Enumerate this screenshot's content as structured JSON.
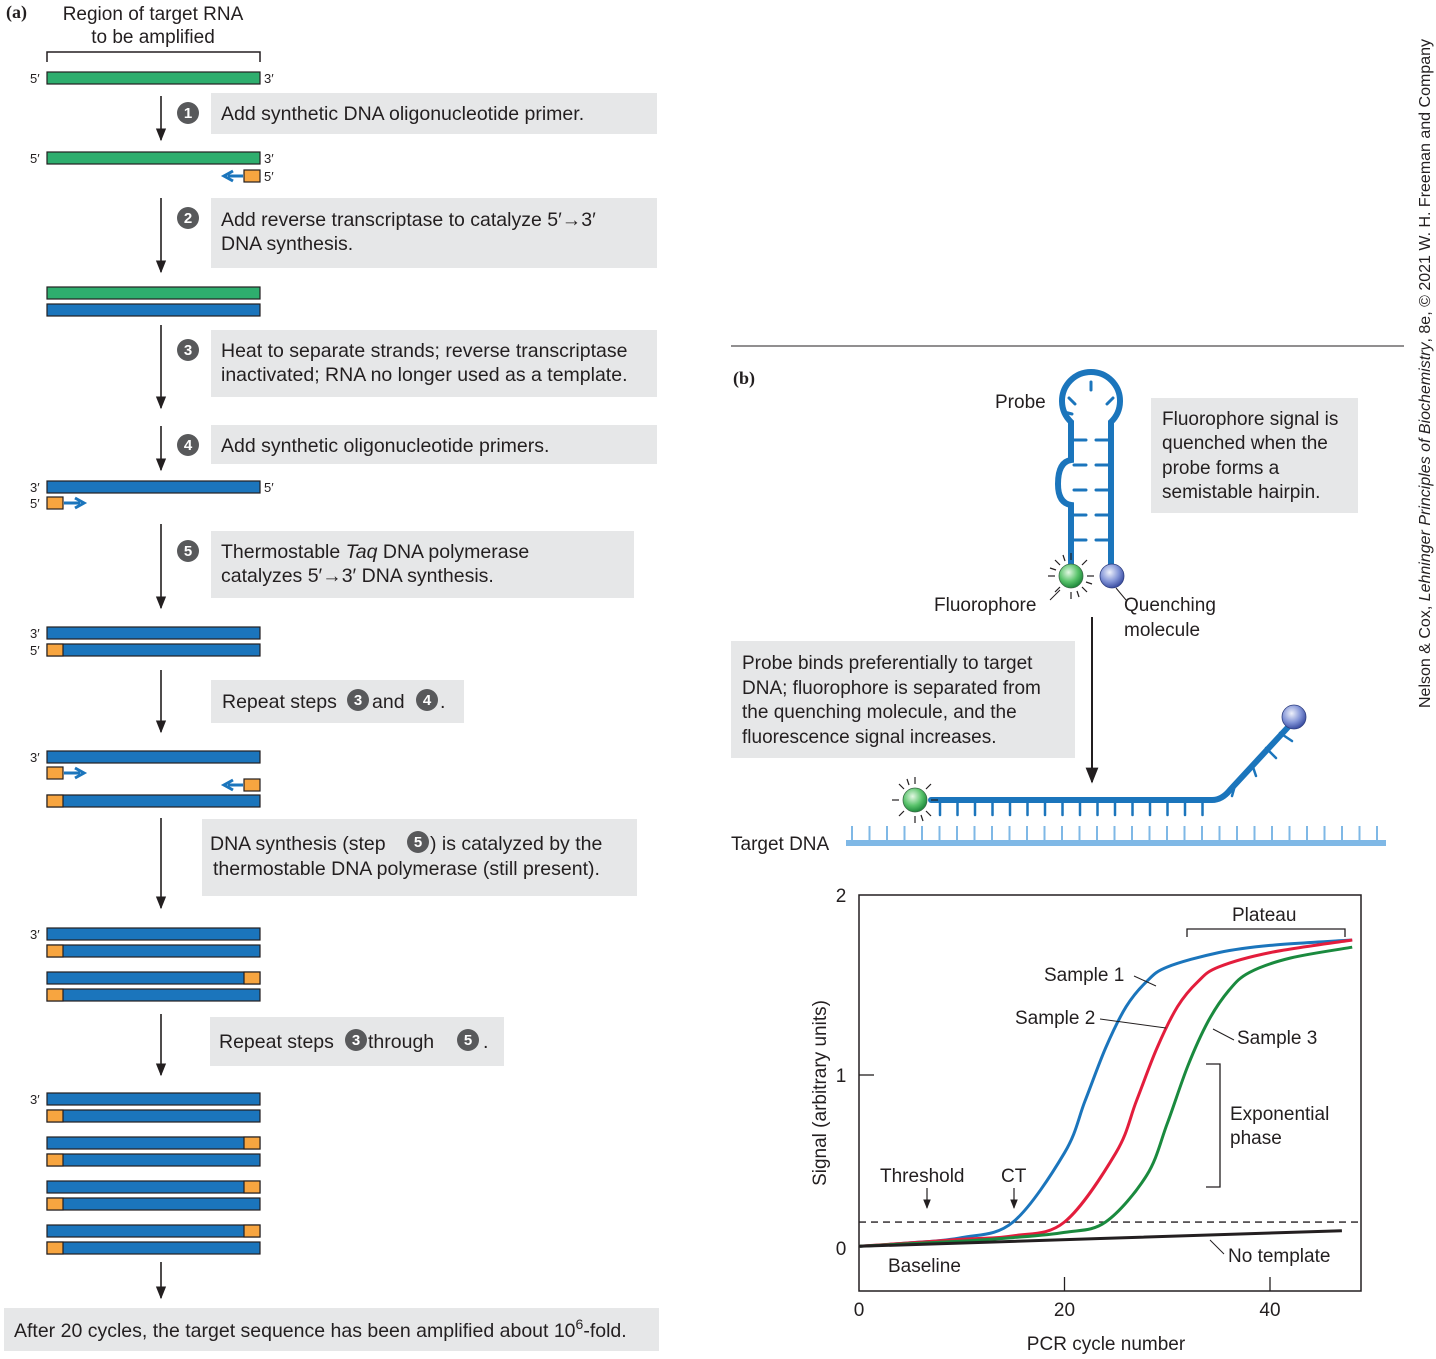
{
  "panel_a": {
    "label": "(a)",
    "region_title_line1": "Region of target RNA",
    "region_title_line2": "to be amplified",
    "end5": "5′",
    "end3": "3′",
    "steps": [
      {
        "num": "1",
        "line1": "Add synthetic DNA oligonucleotide primer.",
        "line2": ""
      },
      {
        "num": "2",
        "line1": "Add reverse transcriptase  to catalyze 5′→3′",
        "line2": "DNA synthesis."
      },
      {
        "num": "3",
        "line1": "Heat to separate strands; reverse transcriptase",
        "line2": "inactivated; RNA no longer used as a template."
      },
      {
        "num": "4",
        "line1": "Add synthetic oligonucleotide primers.",
        "line2": ""
      },
      {
        "num": "5",
        "line1_pre": "Thermostable ",
        "line1_italic": "Taq",
        "line1_post": " DNA polymerase",
        "line2": "catalyzes 5′→3′ DNA synthesis."
      }
    ],
    "repeat1": {
      "pre": "Repeat steps ",
      "n1": "3",
      "mid": "and ",
      "n2": "4",
      "post": "."
    },
    "synthesis_note": {
      "pre": "DNA synthesis (step ",
      "n": "5",
      "post": ") is catalyzed by the",
      "line2": "thermostable DNA polymerase (still present)."
    },
    "repeat2": {
      "pre": "Repeat steps ",
      "n1": "3",
      "mid": " through ",
      "n2": "5",
      "post": "."
    },
    "final": {
      "pre": "After 20 cycles, the target sequence has been amplified about 10",
      "sup": "6",
      "post": "-fold."
    }
  },
  "panel_b": {
    "label": "(b)",
    "probe": "Probe",
    "fluorophore": "Fluorophore",
    "quencher_line1": "Quenching",
    "quencher_line2": "molecule",
    "quenched_note": [
      "Fluorophore signal is",
      "quenched when the",
      "probe forms a",
      "semistable hairpin."
    ],
    "binds_note": [
      "Probe binds preferentially to target",
      "DNA; fluorophore is separated from",
      "the quenching molecule, and the",
      "fluorescence signal increases."
    ],
    "target_dna": "Target DNA"
  },
  "credit": {
    "pre": "Nelson & Cox, ",
    "italic": "Lehninger Principles of Biochemistry",
    "post": ", 8e, © 2021 W. H. Freeman and Company"
  },
  "colors": {
    "rna_green": "#2eae6e",
    "dna_blue": "#1b75bc",
    "primer_orange": "#f7a540",
    "light_blue": "#7fb8e6",
    "box_gray": "#e6e7e8",
    "sample1": "#1b75bc",
    "sample2": "#e31d3c",
    "sample3": "#1a8a3e"
  },
  "chart_data": {
    "type": "line",
    "xlabel": "PCR cycle number",
    "ylabel": "Signal (arbitrary units)",
    "xlim": [
      0,
      48
    ],
    "ylim": [
      0,
      2
    ],
    "xticks": [
      "0",
      "20",
      "40"
    ],
    "yticks": [
      "0",
      "1",
      "2"
    ],
    "threshold": 0.15,
    "series": [
      {
        "name": "Sample 1",
        "x": [
          0,
          5,
          10,
          15,
          20,
          22,
          24,
          26,
          28,
          30,
          35,
          40,
          48
        ],
        "y": [
          0.01,
          0.03,
          0.06,
          0.15,
          0.55,
          0.85,
          1.15,
          1.38,
          1.52,
          1.6,
          1.68,
          1.72,
          1.75
        ]
      },
      {
        "name": "Sample 2",
        "x": [
          0,
          10,
          15,
          20,
          25,
          27,
          29,
          31,
          33,
          35,
          40,
          48
        ],
        "y": [
          0.01,
          0.05,
          0.07,
          0.15,
          0.55,
          0.85,
          1.15,
          1.38,
          1.52,
          1.6,
          1.68,
          1.75
        ]
      },
      {
        "name": "Sample 3",
        "x": [
          0,
          10,
          15,
          20,
          24,
          28,
          30,
          32,
          34,
          36,
          38,
          42,
          48
        ],
        "y": [
          0.01,
          0.04,
          0.06,
          0.09,
          0.15,
          0.42,
          0.72,
          1.05,
          1.3,
          1.47,
          1.57,
          1.65,
          1.71
        ]
      },
      {
        "name": "No template",
        "x": [
          0,
          47
        ],
        "y": [
          0.01,
          0.1
        ]
      }
    ],
    "annotations": {
      "threshold": "Threshold",
      "ct": "CT",
      "baseline": "Baseline",
      "plateau": "Plateau",
      "exponential_line1": "Exponential",
      "exponential_line2": "phase"
    }
  }
}
